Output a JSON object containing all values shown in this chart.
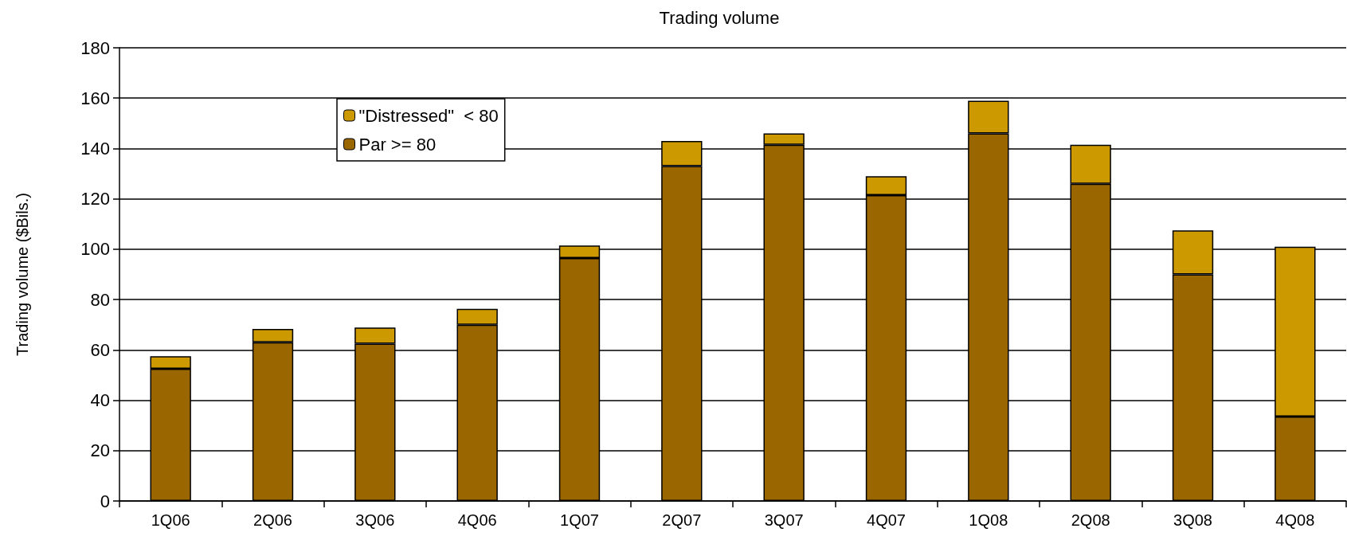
{
  "chart_data": {
    "type": "bar",
    "title": "Trading volume",
    "ylabel": "Trading volume ($Bils.)",
    "categories": [
      "1Q06",
      "2Q06",
      "3Q06",
      "4Q06",
      "1Q07",
      "2Q07",
      "3Q07",
      "4Q07",
      "1Q08",
      "2Q08",
      "3Q08",
      "4Q08"
    ],
    "series": [
      {
        "name": "Par >= 80",
        "color": "#996600",
        "values": [
          52.5,
          63,
          62.5,
          70,
          96.5,
          133,
          141.5,
          121.5,
          146,
          126,
          90,
          33.5
        ]
      },
      {
        "name": "\"Distressed\"  < 80",
        "color": "#cc9900",
        "values": [
          5,
          5.3,
          6.4,
          6.3,
          5,
          10,
          4.5,
          7.5,
          13,
          15.5,
          17.5,
          67.5
        ]
      }
    ],
    "stacked": true,
    "ylim": [
      0,
      180
    ],
    "yticks": [
      0,
      20,
      40,
      60,
      80,
      100,
      120,
      140,
      160,
      180
    ],
    "grid": "y",
    "legend": "top left"
  }
}
